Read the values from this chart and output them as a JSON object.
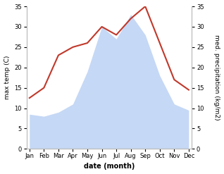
{
  "months": [
    "Jan",
    "Feb",
    "Mar",
    "Apr",
    "May",
    "Jun",
    "Jul",
    "Aug",
    "Sep",
    "Oct",
    "Nov",
    "Dec"
  ],
  "temperature": [
    12.5,
    15.0,
    23.0,
    25.0,
    26.0,
    30.0,
    28.0,
    32.0,
    35.0,
    26.0,
    17.0,
    14.5
  ],
  "precipitation": [
    8.5,
    8.0,
    9.0,
    11.0,
    19.0,
    30.0,
    27.0,
    33.0,
    28.0,
    18.0,
    11.0,
    9.5
  ],
  "temp_color": "#c0392b",
  "precip_fill_color": "#c5d8f5",
  "ylabel_left": "max temp (C)",
  "ylabel_right": "med. precipitation (kg/m2)",
  "xlabel": "date (month)",
  "ylim_left": [
    0,
    35
  ],
  "ylim_right": [
    0,
    35
  ],
  "spine_color": "#bbbbbb",
  "tick_fontsize": 6,
  "label_fontsize": 6.5,
  "xlabel_fontsize": 7
}
